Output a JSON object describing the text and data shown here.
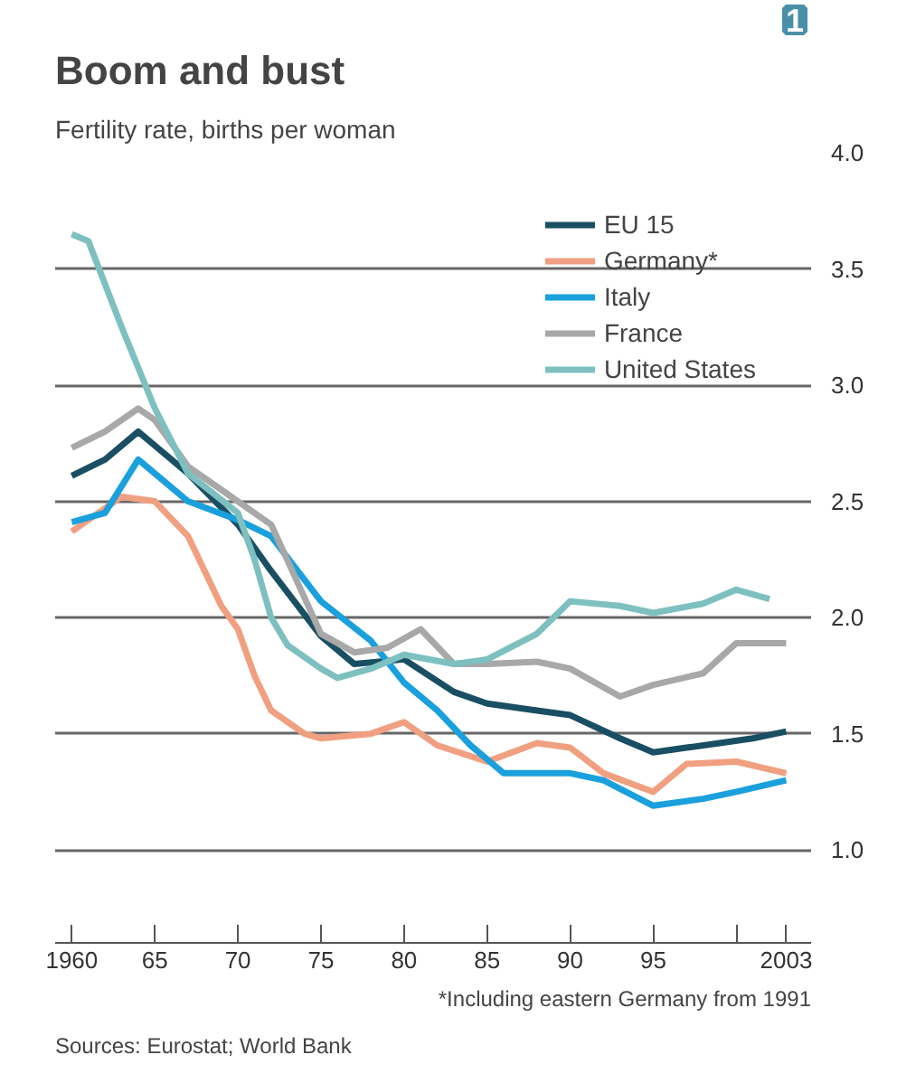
{
  "chart_data": {
    "type": "line",
    "title": "Boom and bust",
    "subtitle": "Fertility rate, births per woman",
    "annotations": [
      "1",
      "*Including eastern Germany from 1991",
      "Sources: Eurostat; World Bank"
    ],
    "xlim": [
      1959,
      2004.5
    ],
    "xticks": [
      1960,
      {
        "value": 1965,
        "label": "65"
      },
      {
        "value": 1970,
        "label": "70"
      },
      {
        "value": 1975,
        "label": "75"
      },
      {
        "value": 1980,
        "label": "80"
      },
      {
        "value": 1985,
        "label": "85"
      },
      {
        "value": 1990,
        "label": "90"
      },
      {
        "value": 1995,
        "label": "95"
      },
      {
        "value": 2000,
        "label": null
      },
      2003
    ],
    "ylim": [
      0.6,
      4.0
    ],
    "yticks": [
      {
        "value": 1.0,
        "label": "1.0"
      },
      {
        "value": 1.5,
        "label": "1.5"
      },
      {
        "value": 2.0,
        "label": "2.0"
      },
      {
        "value": 2.5,
        "label": "2.5"
      },
      {
        "value": 3.0,
        "label": "3.0"
      },
      {
        "value": 3.5,
        "label": "3.5"
      },
      {
        "value": 4.0,
        "label": "4.0"
      }
    ],
    "grid": "y",
    "legend": "top right",
    "marker": "none",
    "line_style": "solid",
    "series": [
      {
        "name": "EU 15",
        "color": "#1a4f63",
        "x": [
          1960,
          1962,
          1964,
          1965,
          1967,
          1970,
          1972,
          1975,
          1977,
          1980,
          1983,
          1985,
          1988,
          1990,
          1993,
          1995,
          1997,
          1999,
          2001,
          2003
        ],
        "values": [
          2.61,
          2.68,
          2.8,
          2.74,
          2.62,
          2.4,
          2.2,
          1.92,
          1.8,
          1.82,
          1.68,
          1.63,
          1.6,
          1.58,
          1.48,
          1.42,
          1.44,
          1.46,
          1.48,
          1.51
        ]
      },
      {
        "name": "Germany*",
        "color": "#f0a080",
        "x": [
          1960,
          1963,
          1965,
          1967,
          1969,
          1970,
          1971,
          1972,
          1974,
          1975,
          1978,
          1980,
          1982,
          1985,
          1988,
          1990,
          1992,
          1995,
          1997,
          2000,
          2003
        ],
        "values": [
          2.37,
          2.52,
          2.5,
          2.35,
          2.05,
          1.95,
          1.75,
          1.6,
          1.5,
          1.48,
          1.5,
          1.55,
          1.45,
          1.38,
          1.46,
          1.44,
          1.33,
          1.25,
          1.37,
          1.38,
          1.33
        ]
      },
      {
        "name": "Italy",
        "color": "#1aa0dc",
        "x": [
          1960,
          1962,
          1964,
          1965,
          1967,
          1970,
          1972,
          1975,
          1978,
          1980,
          1982,
          1984,
          1986,
          1990,
          1992,
          1995,
          1998,
          2000,
          2003
        ],
        "values": [
          2.41,
          2.45,
          2.68,
          2.62,
          2.5,
          2.42,
          2.35,
          2.07,
          1.9,
          1.72,
          1.6,
          1.45,
          1.33,
          1.33,
          1.3,
          1.19,
          1.22,
          1.25,
          1.3
        ]
      },
      {
        "name": "France",
        "color": "#a8a8a8",
        "x": [
          1960,
          1962,
          1964,
          1965,
          1967,
          1970,
          1972,
          1975,
          1977,
          1979,
          1981,
          1983,
          1985,
          1988,
          1990,
          1993,
          1995,
          1998,
          2000,
          2003
        ],
        "values": [
          2.73,
          2.8,
          2.9,
          2.85,
          2.65,
          2.5,
          2.4,
          1.93,
          1.85,
          1.87,
          1.95,
          1.8,
          1.8,
          1.81,
          1.78,
          1.66,
          1.71,
          1.76,
          1.89,
          1.89
        ]
      },
      {
        "name": "United States",
        "color": "#7ec0c0",
        "x": [
          1960,
          1961,
          1963,
          1965,
          1967,
          1970,
          1971,
          1972,
          1973,
          1975,
          1976,
          1978,
          1980,
          1983,
          1985,
          1988,
          1990,
          1993,
          1995,
          1998,
          2000,
          2002
        ],
        "values": [
          3.65,
          3.62,
          3.25,
          2.9,
          2.62,
          2.45,
          2.25,
          2.0,
          1.88,
          1.78,
          1.74,
          1.78,
          1.84,
          1.8,
          1.82,
          1.93,
          2.07,
          2.05,
          2.02,
          2.06,
          2.12,
          2.08
        ]
      }
    ]
  }
}
